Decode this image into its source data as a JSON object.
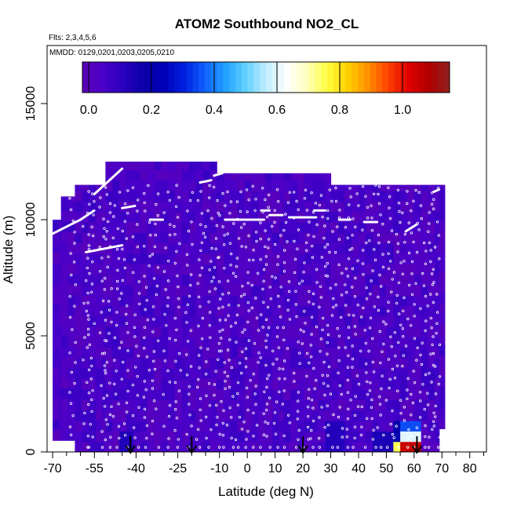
{
  "chart_data": {
    "type": "heatmap",
    "title": "ATOM2 Southbound NO2_CL",
    "flights_label": "Flts: 2,3,4,5,6",
    "dates_label": "MMDD: 0129,0201,0203,0205,0210",
    "xlabel": "Latitude (deg N)",
    "ylabel": "Altitude (m)",
    "xlim": [
      -72,
      86
    ],
    "ylim": [
      0,
      17500
    ],
    "x_ticks": [
      -70,
      -55,
      -40,
      -25,
      -10,
      0,
      10,
      20,
      30,
      40,
      50,
      60,
      70,
      80
    ],
    "x_tick_labels": [
      "-70",
      "-55",
      "-40",
      "-25",
      "-10",
      "0",
      "10",
      "20",
      "30",
      "40",
      "50",
      "60",
      "70",
      "80"
    ],
    "x_minor_ticks": [
      -65,
      -60,
      -50,
      -45,
      -35,
      -30,
      -20,
      -15,
      -5,
      5,
      15,
      25,
      35,
      45,
      55,
      65,
      75,
      85
    ],
    "y_ticks": [
      0,
      5000,
      10000,
      15000
    ],
    "y_tick_labels": [
      "0",
      "5000",
      "10000",
      "15000"
    ],
    "colorbar": {
      "range": [
        -0.02,
        1.15
      ],
      "ticks": [
        0.0,
        0.2,
        0.4,
        0.6,
        0.8,
        1.0
      ],
      "tick_labels": [
        "0.0",
        "0.2",
        "0.4",
        "0.6",
        "0.8",
        "1.0"
      ],
      "colors": [
        "#5b00b8",
        "#4b00c8",
        "#2a00c0",
        "#0a00a8",
        "#0000b8",
        "#0020e0",
        "#1060ff",
        "#20a0ff",
        "#60d0ff",
        "#c0ecff",
        "#ffffff",
        "#ffffc0",
        "#ffff40",
        "#ffd000",
        "#ff9000",
        "#ff4000",
        "#e00000",
        "#b00000",
        "#902020"
      ]
    },
    "domain_extent": [
      {
        "lat": [
          -70,
          -67
        ],
        "alt": [
          500,
          10000
        ]
      },
      {
        "lat": [
          -67,
          -62
        ],
        "alt": [
          500,
          11000
        ]
      },
      {
        "lat": [
          -62,
          -51
        ],
        "alt": [
          0,
          11500
        ]
      },
      {
        "lat": [
          -51,
          -41
        ],
        "alt": [
          0,
          12500
        ]
      },
      {
        "lat": [
          -41,
          -11
        ],
        "alt": [
          0,
          12500
        ]
      },
      {
        "lat": [
          -11,
          13
        ],
        "alt": [
          0,
          12000
        ]
      },
      {
        "lat": [
          13,
          30
        ],
        "alt": [
          0,
          12000
        ]
      },
      {
        "lat": [
          30,
          45
        ],
        "alt": [
          0,
          11500
        ]
      },
      {
        "lat": [
          45,
          69
        ],
        "alt": [
          0,
          11500
        ]
      },
      {
        "lat": [
          69,
          71
        ],
        "alt": [
          1000,
          11500
        ]
      }
    ],
    "background_value": 0.04,
    "hotspots": [
      {
        "lat_range": [
          55,
          62
        ],
        "alt_range": [
          0,
          450
        ],
        "value": 1.05
      },
      {
        "lat_range": [
          53,
          55
        ],
        "alt_range": [
          0,
          450
        ],
        "value": 0.75
      },
      {
        "lat_range": [
          62,
          63
        ],
        "alt_range": [
          0,
          450
        ],
        "value": 0.6
      },
      {
        "lat_range": [
          56,
          62
        ],
        "alt_range": [
          450,
          900
        ],
        "value": 0.6
      },
      {
        "lat_range": [
          56,
          63
        ],
        "alt_range": [
          900,
          1400
        ],
        "value": 0.35
      },
      {
        "lat_range": [
          53,
          56
        ],
        "alt_range": [
          450,
          1400
        ],
        "value": 0.2
      },
      {
        "lat_range": [
          -46,
          -41
        ],
        "alt_range": [
          0,
          1000
        ],
        "value": 0.13
      },
      {
        "lat_range": [
          27,
          35
        ],
        "alt_range": [
          0,
          1500
        ],
        "value": 0.12
      },
      {
        "lat_range": [
          45,
          53
        ],
        "alt_range": [
          0,
          1000
        ],
        "value": 0.14
      }
    ],
    "flight_track_segments": [
      {
        "lat": [
          -70,
          -60
        ],
        "alt": [
          9400,
          10000
        ]
      },
      {
        "lat": [
          -60,
          -55
        ],
        "alt": [
          10000,
          10400
        ]
      },
      {
        "lat": [
          -58,
          -45
        ],
        "alt": [
          8600,
          8900
        ]
      },
      {
        "lat": [
          -55,
          -45
        ],
        "alt": [
          11100,
          12200
        ]
      },
      {
        "lat": [
          -45,
          -40
        ],
        "alt": [
          10500,
          10600
        ]
      },
      {
        "lat": [
          -35,
          -30
        ],
        "alt": [
          10000,
          10000
        ]
      },
      {
        "lat": [
          -17,
          -13
        ],
        "alt": [
          11600,
          11700
        ]
      },
      {
        "lat": [
          -12,
          -9
        ],
        "alt": [
          11900,
          12000
        ]
      },
      {
        "lat": [
          -8,
          6
        ],
        "alt": [
          10000,
          10000
        ]
      },
      {
        "lat": [
          5,
          8
        ],
        "alt": [
          10400,
          10400
        ]
      },
      {
        "lat": [
          8,
          13
        ],
        "alt": [
          10200,
          10200
        ]
      },
      {
        "lat": [
          15,
          25
        ],
        "alt": [
          10100,
          10100
        ]
      },
      {
        "lat": [
          24,
          28
        ],
        "alt": [
          10400,
          10400
        ]
      },
      {
        "lat": [
          33,
          37
        ],
        "alt": [
          10000,
          10000
        ]
      },
      {
        "lat": [
          42,
          47
        ],
        "alt": [
          9900,
          9900
        ]
      },
      {
        "lat": [
          57,
          61
        ],
        "alt": [
          9500,
          9800
        ]
      },
      {
        "lat": [
          67,
          69
        ],
        "alt": [
          11200,
          11300
        ]
      }
    ],
    "profile_columns": [
      -63,
      -58,
      -56,
      -52,
      -50,
      -47,
      -44,
      -40,
      -36,
      -33,
      -29,
      -25,
      -21,
      -17,
      -14,
      -11,
      -9,
      -6,
      -3,
      0,
      3,
      6,
      8,
      11,
      14,
      18,
      21,
      24,
      27,
      30,
      33,
      36,
      39,
      42,
      45,
      48,
      51,
      54,
      57,
      60,
      63,
      66,
      68
    ],
    "arrows_lat": [
      -42,
      -20,
      20,
      61
    ]
  }
}
